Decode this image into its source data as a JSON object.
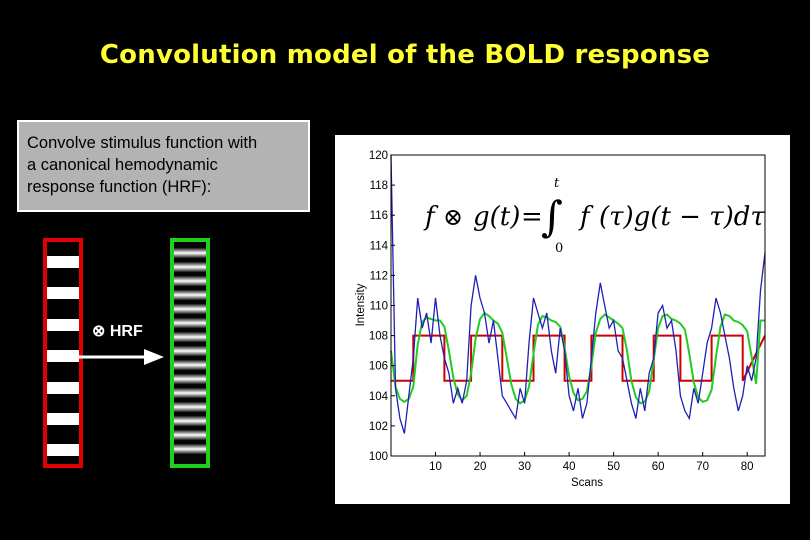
{
  "slide": {
    "title": "Convolution model of the BOLD response",
    "textbox_lines": [
      "Convolve stimulus function with",
      "a canonical hemodynamic",
      "response function (HRF):"
    ],
    "hrf_label": "⊗ HRF"
  },
  "chart_data": {
    "type": "line",
    "title": "",
    "xlabel": "Scans",
    "ylabel": "Intensity",
    "xlim": [
      0,
      84
    ],
    "ylim": [
      100,
      120
    ],
    "xticks": [
      10,
      20,
      30,
      40,
      50,
      60,
      70,
      80
    ],
    "yticks": [
      100,
      102,
      104,
      106,
      108,
      110,
      112,
      114,
      116,
      118,
      120
    ],
    "equation": "f ⊗ g(t) = ∫₀ᵗ f(τ) g(t − τ) dτ",
    "series": [
      {
        "color": "#cc0000",
        "x": [
          0,
          5,
          5,
          12,
          12,
          18,
          18,
          25,
          25,
          32,
          32,
          39,
          39,
          45,
          45,
          52,
          52,
          59,
          59,
          65,
          65,
          72,
          72,
          79,
          79,
          84
        ],
        "y": [
          105,
          105,
          108,
          108,
          105,
          105,
          108,
          108,
          105,
          105,
          108,
          108,
          105,
          105,
          108,
          108,
          105,
          105,
          108,
          108,
          105,
          105,
          108,
          108,
          105,
          108
        ]
      },
      {
        "color": "#22cc22",
        "x": [
          0,
          1,
          2,
          3,
          4,
          5,
          6,
          7,
          8,
          9,
          10,
          11,
          12,
          13,
          14,
          15,
          16,
          17,
          18,
          19,
          20,
          21,
          22,
          23,
          24,
          25,
          26,
          27,
          28,
          29,
          30,
          31,
          32,
          33,
          34,
          35,
          36,
          37,
          38,
          39,
          40,
          41,
          42,
          43,
          44,
          45,
          46,
          47,
          48,
          49,
          50,
          51,
          52,
          53,
          54,
          55,
          56,
          57,
          58,
          59,
          60,
          61,
          62,
          63,
          64,
          65,
          66,
          67,
          68,
          69,
          70,
          71,
          72,
          73,
          74,
          75,
          76,
          77,
          78,
          79,
          80,
          81,
          82,
          83,
          84
        ],
        "y": [
          107,
          104.6,
          103.8,
          103.6,
          103.8,
          104.6,
          107.4,
          108.9,
          109.2,
          109.1,
          109,
          109,
          108.6,
          107,
          105.2,
          104.1,
          103.7,
          104,
          105.5,
          107.8,
          109.1,
          109.5,
          109.3,
          109,
          108.8,
          108.2,
          106.5,
          104.8,
          103.8,
          103.5,
          103.7,
          104.6,
          106.8,
          108.7,
          109.3,
          109.2,
          109,
          108.9,
          108.6,
          107.2,
          105.3,
          104.2,
          103.7,
          103.8,
          104.3,
          106,
          108.2,
          109.1,
          109.4,
          109.2,
          109,
          108.8,
          108.5,
          107,
          105,
          103.9,
          103.5,
          103.6,
          104.3,
          106.4,
          108.5,
          109.3,
          109.4,
          109.1,
          109,
          108.8,
          108.4,
          106.8,
          104.9,
          103.9,
          103.6,
          103.7,
          104.4,
          106.6,
          108.6,
          109.4,
          109.3,
          109,
          108.9,
          108.7,
          108.3,
          106.6,
          104.8,
          109,
          109
        ]
      },
      {
        "color": "#1f1fb4",
        "x": [
          0,
          1,
          2,
          3,
          4,
          5,
          6,
          7,
          8,
          9,
          10,
          11,
          12,
          13,
          14,
          15,
          16,
          17,
          18,
          19,
          20,
          21,
          22,
          23,
          24,
          25,
          26,
          27,
          28,
          29,
          30,
          31,
          32,
          33,
          34,
          35,
          36,
          37,
          38,
          39,
          40,
          41,
          42,
          43,
          44,
          45,
          46,
          47,
          48,
          49,
          50,
          51,
          52,
          53,
          54,
          55,
          56,
          57,
          58,
          59,
          60,
          61,
          62,
          63,
          64,
          65,
          66,
          67,
          68,
          69,
          70,
          71,
          72,
          73,
          74,
          75,
          76,
          77,
          78,
          79,
          80,
          81,
          82,
          83,
          84
        ],
        "y": [
          120,
          104.5,
          102.5,
          101.5,
          104,
          106.5,
          110.5,
          108.5,
          109.5,
          107.5,
          110.5,
          108,
          106.5,
          105.5,
          103.5,
          104.5,
          103.5,
          105,
          110,
          112,
          110.5,
          109.5,
          107.5,
          109,
          106.5,
          104,
          103.5,
          103,
          102.5,
          104.5,
          103.5,
          107.5,
          110.5,
          109.5,
          108.5,
          109.5,
          107,
          105.5,
          108.5,
          107,
          104,
          103,
          104.5,
          102.5,
          103.5,
          106.5,
          109.5,
          111.5,
          110,
          108.5,
          109,
          107,
          106.5,
          105,
          103.5,
          102.5,
          104.5,
          103,
          105.5,
          106.5,
          109.5,
          110,
          108.5,
          109,
          107,
          104,
          103,
          102.5,
          104.5,
          103.5,
          105.5,
          107.5,
          108.5,
          110.5,
          109.5,
          108,
          106.5,
          104.5,
          103,
          104,
          106,
          105,
          106.5,
          111,
          113.5
        ]
      }
    ]
  }
}
